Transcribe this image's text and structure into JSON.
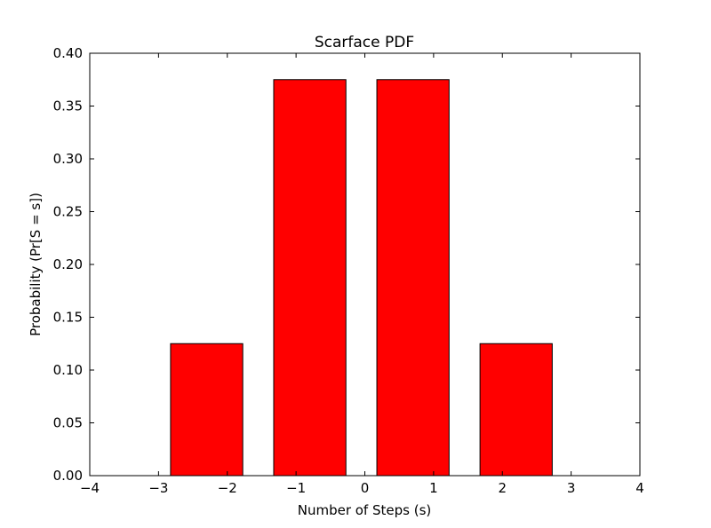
{
  "chart_data": {
    "type": "bar",
    "title": "Scarface PDF",
    "xlabel": "Number of Steps (s)",
    "ylabel": "Probability (Pr[S = s])",
    "x": [
      -2.3,
      -0.8,
      0.7,
      2.2
    ],
    "values": [
      0.125,
      0.375,
      0.375,
      0.125
    ],
    "bar_width": 1.05,
    "xlim": [
      -4,
      4
    ],
    "ylim": [
      0,
      0.4
    ],
    "xticks": [
      -4,
      -3,
      -2,
      -1,
      0,
      1,
      2,
      3,
      4
    ],
    "xtick_labels": [
      "−4",
      "−3",
      "−2",
      "−1",
      "0",
      "1",
      "2",
      "3",
      "4"
    ],
    "yticks": [
      0,
      0.05,
      0.1,
      0.15,
      0.2,
      0.25,
      0.3,
      0.35,
      0.4
    ],
    "ytick_labels": [
      "0.00",
      "0.05",
      "0.10",
      "0.15",
      "0.20",
      "0.25",
      "0.30",
      "0.35",
      "0.40"
    ],
    "bar_color": "#ff0000",
    "edge_color": "#000000",
    "grid": false,
    "legend": false
  }
}
